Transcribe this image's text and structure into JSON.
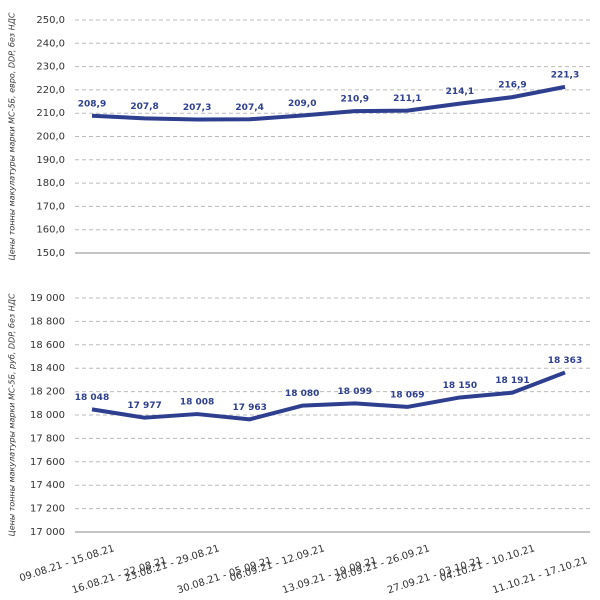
{
  "chart_data": [
    {
      "type": "line",
      "ylabel": "Цены тонны макулатуры марки МС-5Б, евро, DDP, без НДС",
      "series": [
        {
          "color": "#2e3f8f",
          "values": [
            208.9,
            207.8,
            207.3,
            207.4,
            209.0,
            210.9,
            211.1,
            214.1,
            216.9,
            221.3
          ],
          "value_labels": [
            "208,9",
            "207,8",
            "207,3",
            "207,4",
            "209,0",
            "210,9",
            "211,1",
            "214,1",
            "216,9",
            "221,3"
          ]
        }
      ],
      "ylim": [
        150,
        250
      ],
      "yticks": [
        {
          "value": 150,
          "label": "150,0"
        },
        {
          "value": 160,
          "label": "160,0"
        },
        {
          "value": 170,
          "label": "170,0"
        },
        {
          "value": 180,
          "label": "180,0"
        },
        {
          "value": 190,
          "label": "190,0"
        },
        {
          "value": 200,
          "label": "200,0"
        },
        {
          "value": 210,
          "label": "210,0"
        },
        {
          "value": 220,
          "label": "220,0"
        },
        {
          "value": 230,
          "label": "230,0"
        },
        {
          "value": 240,
          "label": "240,0"
        },
        {
          "value": 250,
          "label": "250,0"
        }
      ],
      "grid": true
    },
    {
      "type": "line",
      "ylabel": "Цены тонны макулатуры марки МС-5Б, руб, DDP, без НДС",
      "categories": [
        "09.08.21 - 15.08.21",
        "16.08.21 - 22.08.21",
        "23.08.21 - 29.08.21",
        "30.08.21 - 05.09.21",
        "06.09.21 - 12.09.21",
        "13.09.21 - 19.09.21",
        "20.09.21 - 26.09.21",
        "27.09.21 - 03.10.21",
        "04.10.21 - 10.10.21",
        "11.10.21 - 17.10.21"
      ],
      "series": [
        {
          "color": "#2e3f8f",
          "values": [
            18048,
            17977,
            18008,
            17963,
            18080,
            18099,
            18069,
            18150,
            18191,
            18363
          ],
          "value_labels": [
            "18 048",
            "17 977",
            "18 008",
            "17 963",
            "18 080",
            "18 099",
            "18 069",
            "18 150",
            "18 191",
            "18 363"
          ]
        }
      ],
      "ylim": [
        17000,
        19000
      ],
      "yticks": [
        {
          "value": 17000,
          "label": "17 000"
        },
        {
          "value": 17200,
          "label": "17 200"
        },
        {
          "value": 17400,
          "label": "17 400"
        },
        {
          "value": 17600,
          "label": "17 600"
        },
        {
          "value": 17800,
          "label": "17 800"
        },
        {
          "value": 18000,
          "label": "18 000"
        },
        {
          "value": 18200,
          "label": "18 200"
        },
        {
          "value": 18400,
          "label": "18 400"
        },
        {
          "value": 18600,
          "label": "18 600"
        },
        {
          "value": 18800,
          "label": "18 800"
        },
        {
          "value": 19000,
          "label": "19 000"
        }
      ],
      "grid": true
    }
  ]
}
